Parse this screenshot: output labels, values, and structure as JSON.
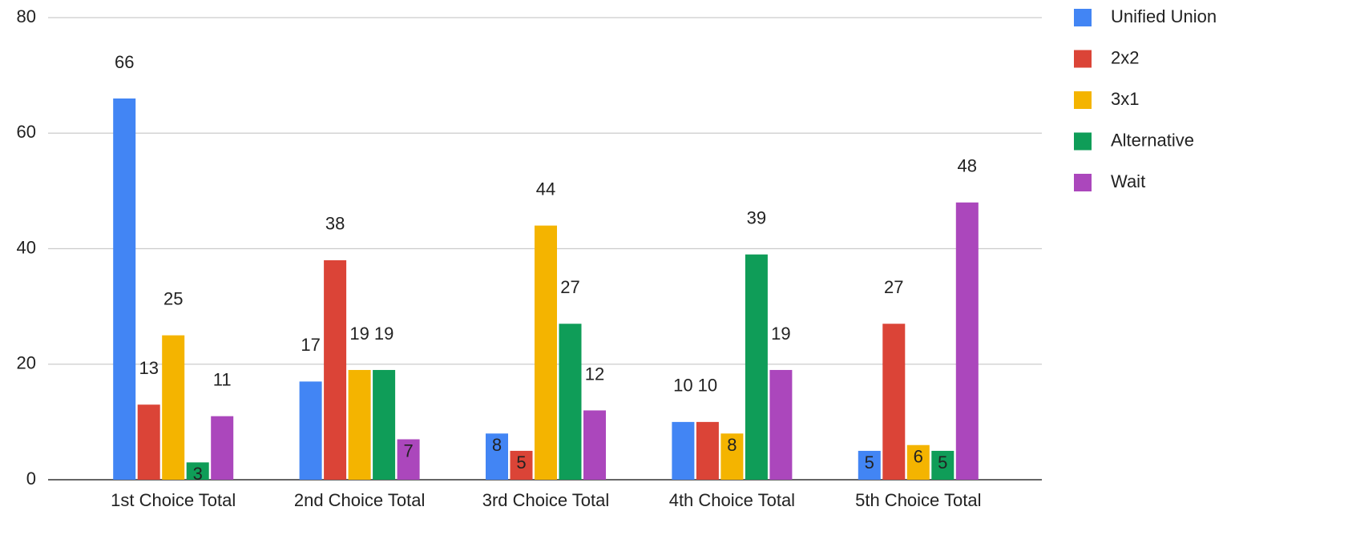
{
  "chart_data": {
    "type": "bar",
    "categories": [
      "1st Choice Total",
      "2nd Choice Total",
      "3rd Choice Total",
      "4th Choice Total",
      "5th Choice Total"
    ],
    "series": [
      {
        "name": "Unified Union",
        "color": "#4285f4",
        "values": [
          66,
          17,
          8,
          10,
          5
        ]
      },
      {
        "name": "2x2",
        "color": "#db4437",
        "values": [
          13,
          38,
          5,
          10,
          27
        ]
      },
      {
        "name": "3x1",
        "color": "#f4b400",
        "values": [
          25,
          19,
          44,
          8,
          6
        ]
      },
      {
        "name": "Alternative",
        "color": "#0f9d58",
        "values": [
          3,
          19,
          27,
          39,
          5
        ]
      },
      {
        "name": "Wait",
        "color": "#ab47bc",
        "values": [
          11,
          7,
          12,
          19,
          48
        ]
      }
    ],
    "ylim": [
      0,
      80
    ],
    "yticks": [
      0,
      20,
      40,
      60,
      80
    ],
    "grid": true,
    "legend": "right"
  }
}
